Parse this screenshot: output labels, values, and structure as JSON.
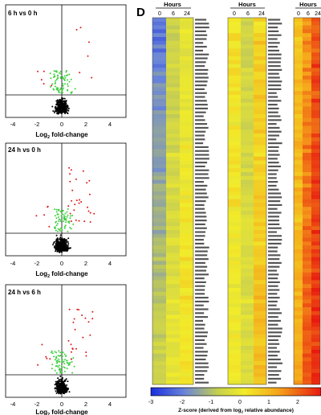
{
  "panel_d_letter": "D",
  "volcano_plots": [
    {
      "title": "6 h vs 0 h",
      "xlabel_pre": "Log",
      "xlabel_sub": "2",
      "xlabel_post": " fold-change",
      "xticks": [
        "-4",
        "-2",
        "0",
        "2",
        "4"
      ]
    },
    {
      "title": "24 h vs 0 h",
      "xlabel_pre": "Log",
      "xlabel_sub": "2",
      "xlabel_post": " fold-change",
      "xticks": [
        "-4",
        "-2",
        "0",
        "2",
        "4"
      ]
    },
    {
      "title": "24 h vs 6 h",
      "xlabel_pre": "Log",
      "xlabel_sub": "2",
      "xlabel_post": " fold-change",
      "xticks": [
        "-4",
        "-2",
        "0",
        "2",
        "4"
      ]
    }
  ],
  "heatmap": {
    "columns_label": "Hours",
    "column_ticks": [
      "0",
      "6",
      "24"
    ],
    "colorbar_ticks": [
      "-3",
      "-2",
      "-1",
      "0",
      "1",
      "2"
    ],
    "colorbar_label_pre": "Z-score (derived from log",
    "colorbar_label_sub": "2",
    "colorbar_label_post": " relative abundance)",
    "colors": {
      "low": "#2f4fd8",
      "mid": "#e8e84a",
      "high": "#d81c1c"
    }
  }
}
